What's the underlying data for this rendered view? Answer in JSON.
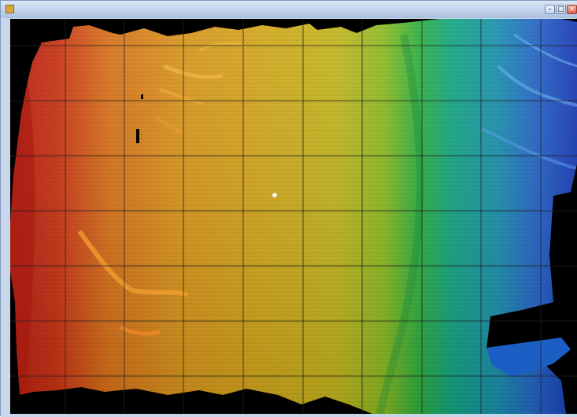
{
  "window": {
    "title": "",
    "minimize_glyph": "–",
    "maximize_glyph": "□",
    "close_glyph": "×"
  },
  "map": {
    "colors": {
      "nodata": "#000000",
      "grid": "#1f1f1f",
      "ramp": [
        "#b81e12",
        "#cf4a14",
        "#d8781a",
        "#d99a1c",
        "#cfae1c",
        "#b8b81c",
        "#56b526",
        "#14a66e",
        "#1c8fb0",
        "#2255c8",
        "#1535b0"
      ]
    }
  }
}
